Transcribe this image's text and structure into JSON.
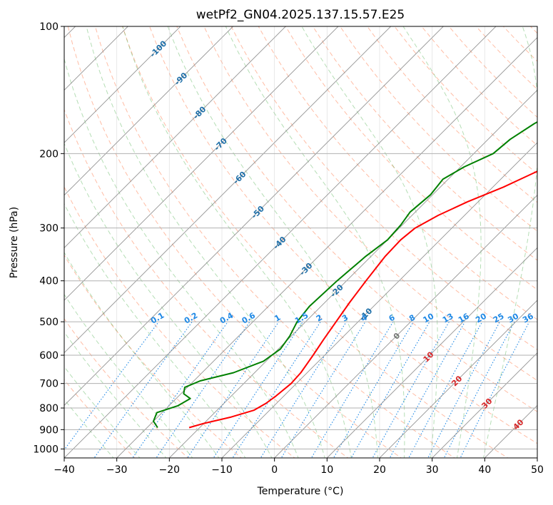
{
  "chart_data": {
    "type": "line",
    "title": "wetPf2_GN04.2025.137.15.57.E25",
    "xlabel": "Temperature (°C)",
    "ylabel": "Pressure (hPa)",
    "xlim": [
      -40,
      50
    ],
    "ylim": [
      1050,
      100
    ],
    "y_scale": "log",
    "grid": true,
    "x_ticks": [
      -40,
      -30,
      -20,
      -10,
      0,
      10,
      20,
      30,
      40,
      50
    ],
    "x_tick_labels": [
      "−40",
      "−30",
      "−20",
      "−10",
      "0",
      "10",
      "20",
      "30",
      "40",
      "50"
    ],
    "y_ticks": [
      100,
      200,
      300,
      400,
      500,
      600,
      700,
      800,
      900,
      1000
    ],
    "y_tick_labels": [
      "100",
      "200",
      "300",
      "400",
      "500",
      "600",
      "700",
      "800",
      "900",
      "1000"
    ],
    "series": [
      {
        "color": "#ff0000",
        "points": [
          {
            "p": 890,
            "t": -22.0
          },
          {
            "p": 870,
            "t": -20.0
          },
          {
            "p": 840,
            "t": -16.0
          },
          {
            "p": 810,
            "t": -13.0
          },
          {
            "p": 780,
            "t": -12.0
          },
          {
            "p": 750,
            "t": -11.5
          },
          {
            "p": 700,
            "t": -11.0
          },
          {
            "p": 660,
            "t": -11.2
          },
          {
            "p": 600,
            "t": -12.2
          },
          {
            "p": 550,
            "t": -13.2
          },
          {
            "p": 500,
            "t": -14.2
          },
          {
            "p": 450,
            "t": -15.3
          },
          {
            "p": 400,
            "t": -16.3
          },
          {
            "p": 350,
            "t": -17.3
          },
          {
            "p": 320,
            "t": -17.5
          },
          {
            "p": 300,
            "t": -17.0
          },
          {
            "p": 280,
            "t": -15.0
          },
          {
            "p": 260,
            "t": -12.0
          },
          {
            "p": 240,
            "t": -8.0
          },
          {
            "p": 220,
            "t": -4.5
          },
          {
            "p": 200,
            "t": -2.0
          },
          {
            "p": 180,
            "t": 1.0
          },
          {
            "p": 160,
            "t": 4.5
          },
          {
            "p": 140,
            "t": 7.5
          },
          {
            "p": 120,
            "t": 10.5
          },
          {
            "p": 100,
            "t": 15.0
          }
        ]
      },
      {
        "color": "#008000",
        "points": [
          {
            "p": 890,
            "t": -28.0
          },
          {
            "p": 860,
            "t": -30.0
          },
          {
            "p": 820,
            "t": -31.0
          },
          {
            "p": 790,
            "t": -28.3
          },
          {
            "p": 760,
            "t": -27.3
          },
          {
            "p": 740,
            "t": -29.5
          },
          {
            "p": 715,
            "t": -30.5
          },
          {
            "p": 690,
            "t": -28.8
          },
          {
            "p": 660,
            "t": -24.0
          },
          {
            "p": 620,
            "t": -20.5
          },
          {
            "p": 580,
            "t": -19.6
          },
          {
            "p": 540,
            "t": -20.3
          },
          {
            "p": 500,
            "t": -21.6
          },
          {
            "p": 460,
            "t": -22.2
          },
          {
            "p": 400,
            "t": -21.8
          },
          {
            "p": 350,
            "t": -21.0
          },
          {
            "p": 320,
            "t": -20.0
          },
          {
            "p": 295,
            "t": -20.3
          },
          {
            "p": 275,
            "t": -21.0
          },
          {
            "p": 250,
            "t": -20.4
          },
          {
            "p": 230,
            "t": -21.0
          },
          {
            "p": 215,
            "t": -19.3
          },
          {
            "p": 200,
            "t": -16.3
          },
          {
            "p": 185,
            "t": -15.8
          },
          {
            "p": 170,
            "t": -14.2
          },
          {
            "p": 150,
            "t": -10.8
          },
          {
            "p": 130,
            "t": -7.0
          },
          {
            "p": 115,
            "t": -4.0
          },
          {
            "p": 100,
            "t": -0.1
          }
        ]
      }
    ],
    "isotherm_labels": [
      {
        "t": -100,
        "p": 113,
        "text": "-100"
      },
      {
        "t": -90,
        "p": 133,
        "text": "-90"
      },
      {
        "t": -80,
        "p": 160,
        "text": "-80"
      },
      {
        "t": -70,
        "p": 190,
        "text": "-70"
      },
      {
        "t": -60,
        "p": 228,
        "text": "-60"
      },
      {
        "t": -50,
        "p": 275,
        "text": "-50"
      },
      {
        "t": -40,
        "p": 325,
        "text": "-40"
      },
      {
        "t": -30,
        "p": 375,
        "text": "-30"
      },
      {
        "t": -20,
        "p": 422,
        "text": "-20"
      },
      {
        "t": -10,
        "p": 480,
        "text": "-10"
      },
      {
        "t": 0,
        "p": 540,
        "text": "0"
      },
      {
        "t": 10,
        "p": 605,
        "text": "10"
      },
      {
        "t": 20,
        "p": 690,
        "text": "20"
      },
      {
        "t": 30,
        "p": 780,
        "text": "30"
      },
      {
        "t": 40,
        "p": 875,
        "text": "40"
      }
    ],
    "mixing_ratio_labels": [
      "0.1",
      "0.2",
      "0.4",
      "0.6",
      "1",
      "1.5",
      "2",
      "3",
      "4",
      "6",
      "8",
      "10",
      "13",
      "16",
      "20",
      "25",
      "30",
      "36"
    ],
    "colors": {
      "temperature": "#ff0000",
      "dewpoint": "#008000",
      "dry_adiabat": "#ff5a1e",
      "moist_adiabat": "#2ca02c",
      "mixing_ratio": "#1e88e5",
      "isotherm_label": "#1f6fa8",
      "warm_isotherm_label": "#d62728",
      "zero_isotherm_label": "#777777",
      "grid": "#b0b0b0",
      "isotherm_line": "#888888"
    }
  }
}
